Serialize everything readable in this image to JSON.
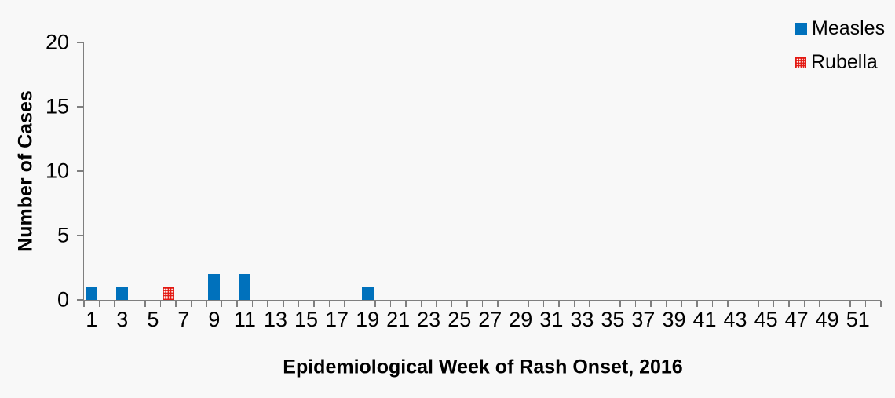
{
  "chart_data": {
    "type": "bar",
    "title": "",
    "xlabel": "Epidemiological Week of Rash Onset, 2016",
    "ylabel": "Number of Cases",
    "x_axis": {
      "unit": "epidemiological week",
      "categories_min": 1,
      "categories_max": 52,
      "labeled_ticks": [
        1,
        3,
        5,
        7,
        9,
        11,
        13,
        15,
        17,
        19,
        21,
        23,
        25,
        27,
        29,
        31,
        33,
        35,
        37,
        39,
        41,
        43,
        45,
        47,
        49,
        51
      ]
    },
    "y_axis": {
      "min": 0,
      "max": 20,
      "ticks": [
        0,
        5,
        10,
        15,
        20
      ]
    },
    "series": [
      {
        "name": "Measles",
        "color": "#0071BC",
        "fill": "solid",
        "points": [
          {
            "week": 1,
            "cases": 1
          },
          {
            "week": 3,
            "cases": 1
          },
          {
            "week": 9,
            "cases": 2
          },
          {
            "week": 11,
            "cases": 2
          },
          {
            "week": 19,
            "cases": 1
          }
        ]
      },
      {
        "name": "Rubella",
        "color": "#E31912",
        "fill": "white-dot-pattern",
        "points": [
          {
            "week": 6,
            "cases": 1
          }
        ]
      }
    ],
    "legend_position": "top-right",
    "grid": false,
    "background_color": "#F8F8F8",
    "axis_color": "#7F7F7F"
  }
}
